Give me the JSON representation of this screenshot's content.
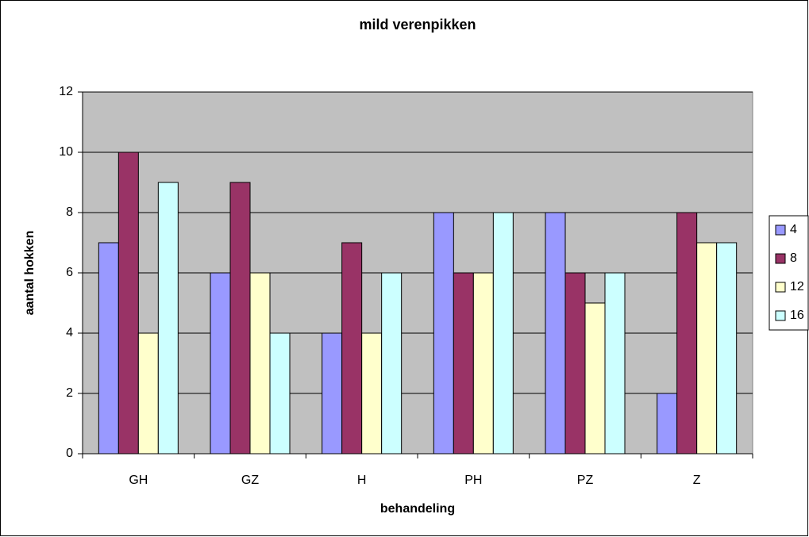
{
  "chart_data": {
    "type": "bar",
    "title": "mild verenpikken",
    "x_label": "behandeling",
    "y_label": "aantal hokken",
    "categories": [
      "GH",
      "GZ",
      "H",
      "PH",
      "PZ",
      "Z"
    ],
    "series": [
      {
        "name": "4",
        "color": "#9999ff",
        "values": [
          7,
          6,
          4,
          8,
          8,
          2
        ]
      },
      {
        "name": "8",
        "color": "#993366",
        "values": [
          10,
          9,
          7,
          6,
          6,
          8
        ]
      },
      {
        "name": "12",
        "color": "#ffffcc",
        "values": [
          4,
          6,
          4,
          6,
          5,
          7
        ]
      },
      {
        "name": "16",
        "color": "#ccffff",
        "values": [
          9,
          4,
          6,
          8,
          6,
          7
        ]
      }
    ],
    "ylim": [
      0,
      12
    ],
    "yticks": [
      0,
      2,
      4,
      6,
      8,
      10,
      12
    ],
    "grid": true,
    "legend": "right"
  }
}
